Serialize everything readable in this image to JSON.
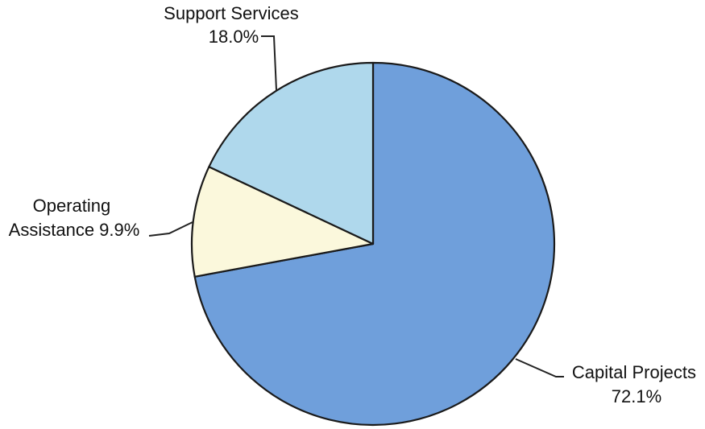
{
  "chart_data": {
    "type": "pie",
    "title": "",
    "slices": [
      {
        "name": "Capital Projects",
        "value": 72.1,
        "color": "#6f9fdb",
        "label_lines": [
          "Capital Projects",
          "72.1%"
        ]
      },
      {
        "name": "Operating Assistance",
        "value": 9.9,
        "color": "#fbf8dc",
        "label_lines": [
          "Operating",
          "Assistance 9.9%"
        ]
      },
      {
        "name": "Support Services",
        "value": 18.0,
        "color": "#afd8ec",
        "label_lines": [
          "Support Services",
          "18.0%"
        ]
      }
    ],
    "start_angle_deg": 0,
    "direction": "clockwise",
    "legend": "none"
  }
}
